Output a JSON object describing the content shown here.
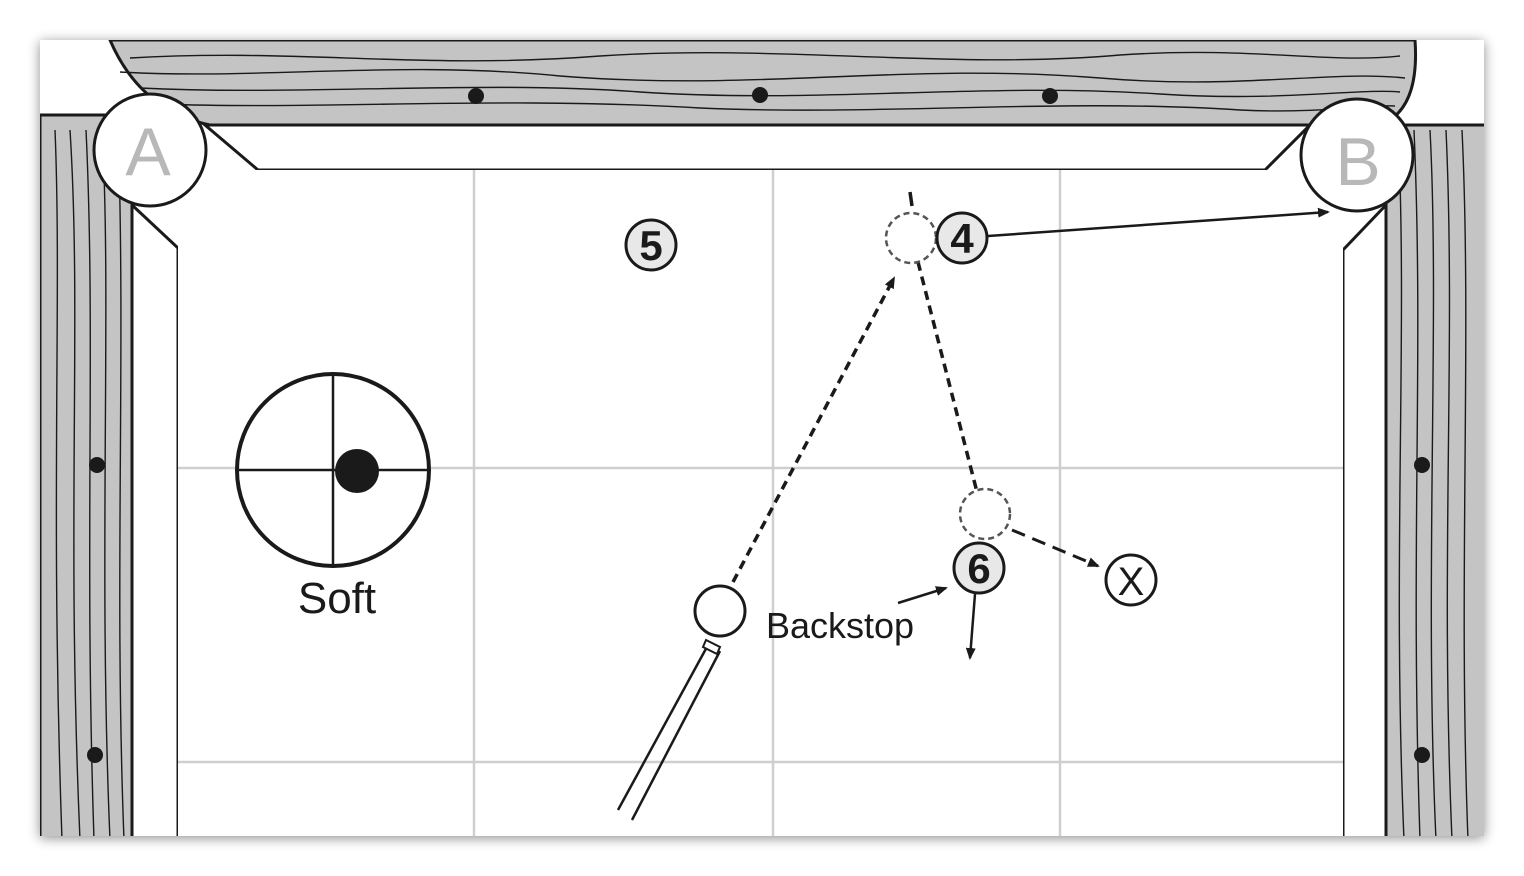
{
  "pockets": [
    {
      "id": "pocket-a",
      "label": "A"
    },
    {
      "id": "pocket-b",
      "label": "B"
    }
  ],
  "balls": [
    {
      "id": "ball-5",
      "label": "5"
    },
    {
      "id": "ball-4",
      "label": "4"
    },
    {
      "id": "ball-6",
      "label": "6"
    },
    {
      "id": "target-x",
      "label": "X"
    }
  ],
  "english": {
    "label": "Soft"
  },
  "annotations": {
    "backstop": "Backstop"
  },
  "colors": {
    "ink": "#1a1a1a",
    "rail": "#c4c4c4",
    "grid": "#cfcfcf",
    "pocket_text": "#b8b8b8",
    "ball_tint": "#e8e8e8"
  }
}
